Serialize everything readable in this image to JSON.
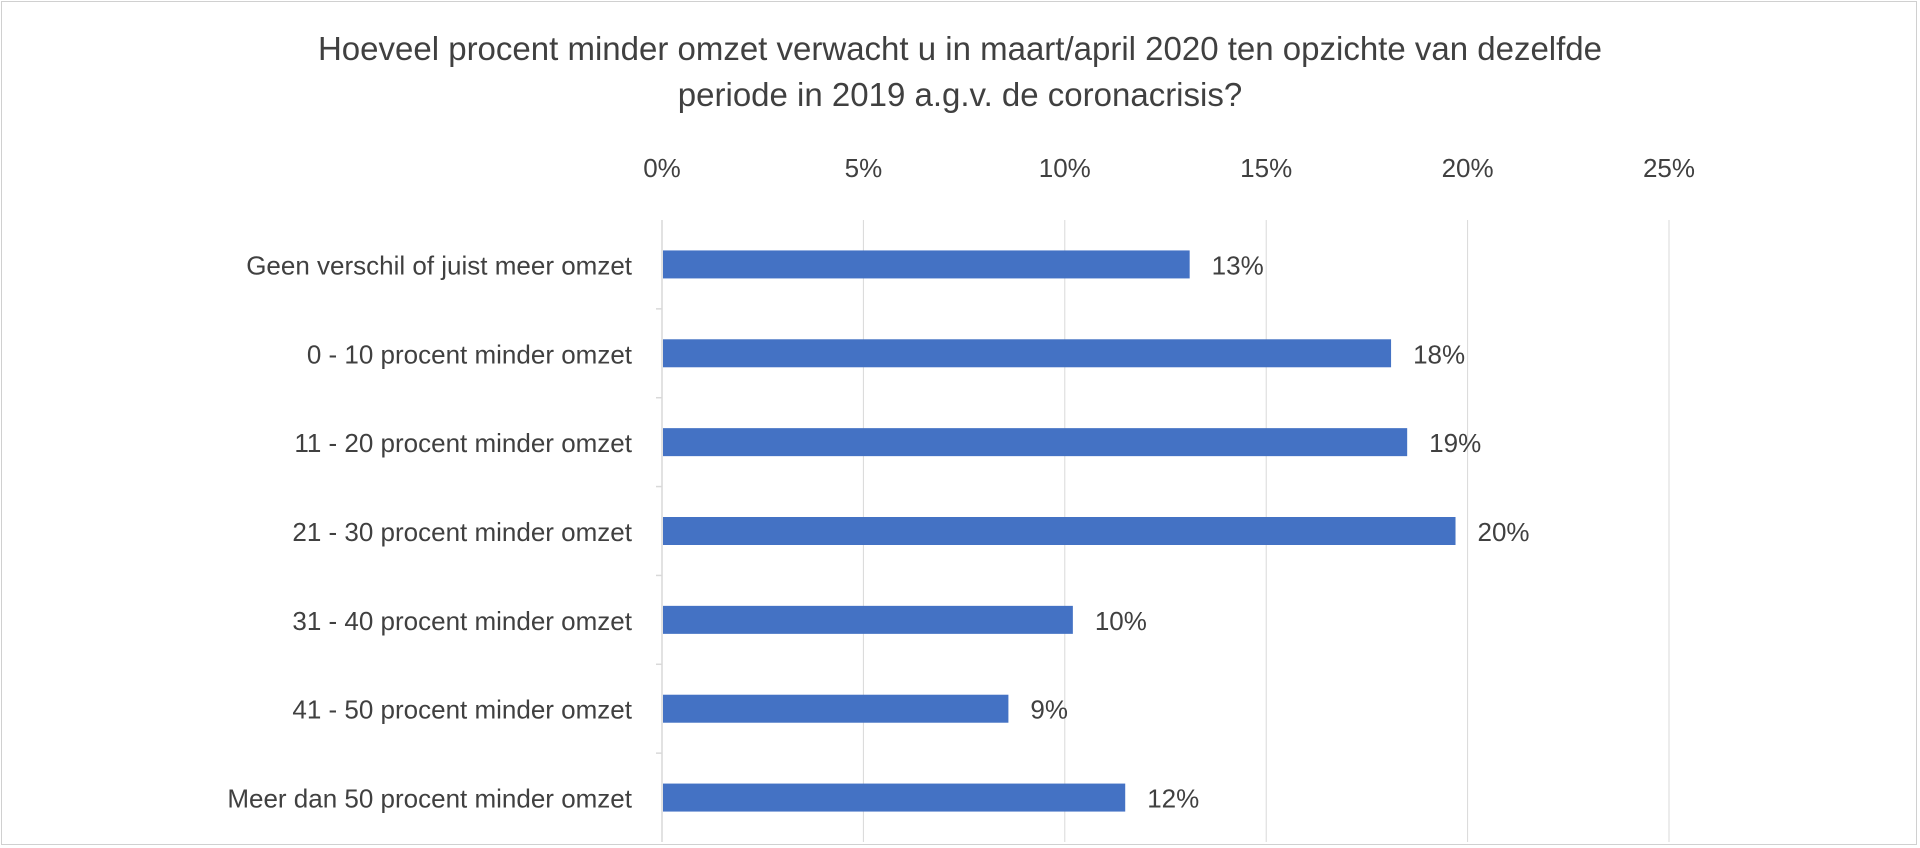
{
  "chart_data": {
    "type": "bar",
    "orientation": "horizontal",
    "title": "Hoeveel procent minder omzet verwacht u in maart/april 2020 ten opzichte van dezelfde\nperiode in 2019 a.g.v. de coronacrisis?",
    "categories": [
      "Geen verschil of juist meer omzet",
      "0 - 10 procent minder omzet",
      "11 - 20 procent minder omzet",
      "21 - 30 procent minder omzet",
      "31 - 40 procent minder omzet",
      "41 - 50 procent minder omzet",
      "Meer dan 50 procent minder omzet"
    ],
    "values": [
      13.1,
      18.1,
      18.5,
      19.7,
      10.2,
      8.6,
      11.5
    ],
    "data_labels": [
      "13%",
      "18%",
      "19%",
      "20%",
      "10%",
      "9%",
      "12%"
    ],
    "xlim": [
      0,
      25
    ],
    "x_ticks": [
      "0%",
      "5%",
      "10%",
      "15%",
      "20%",
      "25%"
    ],
    "x_axis_position": "top",
    "grid": true,
    "legend": "none",
    "colors": {
      "bar": "#4472C4",
      "grid": "#d9d9d9",
      "text": "#404040"
    }
  }
}
